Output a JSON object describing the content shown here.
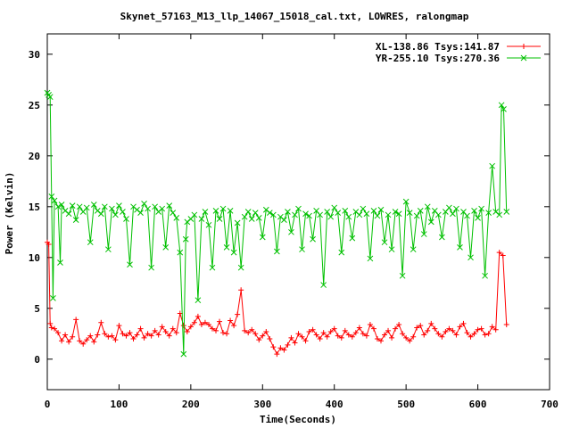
{
  "chart_data": {
    "type": "line",
    "title": "Skynet_57163_M13_llp_14067_15018_cal.txt, LOWRES, ralongmap",
    "xlabel": "Time(Seconds)",
    "ylabel": "Power (Kelvin)",
    "xlim": [
      0,
      700
    ],
    "ylim": [
      -3,
      32
    ],
    "xticks": [
      0,
      100,
      200,
      300,
      400,
      500,
      600,
      700
    ],
    "yticks": [
      0,
      5,
      10,
      15,
      20,
      25,
      30
    ],
    "grid": false,
    "legend_position": "top-right",
    "series": [
      {
        "name": "XL-138.86 Tsys:141.87",
        "color": "#ff0000",
        "marker": "plus",
        "points": [
          [
            0,
            11.5
          ],
          [
            2,
            11.3
          ],
          [
            4,
            3.5
          ],
          [
            6,
            3.1
          ],
          [
            10,
            3.0
          ],
          [
            15,
            2.6
          ],
          [
            20,
            1.8
          ],
          [
            25,
            2.4
          ],
          [
            30,
            1.7
          ],
          [
            35,
            2.2
          ],
          [
            40,
            3.9
          ],
          [
            45,
            1.8
          ],
          [
            50,
            1.5
          ],
          [
            55,
            1.9
          ],
          [
            60,
            2.3
          ],
          [
            65,
            1.7
          ],
          [
            70,
            2.4
          ],
          [
            75,
            3.6
          ],
          [
            80,
            2.5
          ],
          [
            85,
            2.2
          ],
          [
            90,
            2.3
          ],
          [
            95,
            1.9
          ],
          [
            100,
            3.3
          ],
          [
            105,
            2.5
          ],
          [
            110,
            2.3
          ],
          [
            115,
            2.6
          ],
          [
            120,
            2.0
          ],
          [
            125,
            2.4
          ],
          [
            130,
            3.0
          ],
          [
            135,
            2.1
          ],
          [
            140,
            2.5
          ],
          [
            145,
            2.3
          ],
          [
            150,
            2.8
          ],
          [
            155,
            2.4
          ],
          [
            160,
            3.2
          ],
          [
            165,
            2.7
          ],
          [
            170,
            2.3
          ],
          [
            175,
            3.0
          ],
          [
            180,
            2.6
          ],
          [
            185,
            4.5
          ],
          [
            190,
            3.3
          ],
          [
            195,
            2.7
          ],
          [
            200,
            3.2
          ],
          [
            205,
            3.6
          ],
          [
            210,
            4.2
          ],
          [
            215,
            3.4
          ],
          [
            220,
            3.6
          ],
          [
            225,
            3.4
          ],
          [
            230,
            3.0
          ],
          [
            235,
            2.8
          ],
          [
            240,
            3.7
          ],
          [
            245,
            2.6
          ],
          [
            250,
            2.5
          ],
          [
            255,
            3.8
          ],
          [
            260,
            3.3
          ],
          [
            265,
            4.4
          ],
          [
            270,
            6.8
          ],
          [
            275,
            2.8
          ],
          [
            280,
            2.6
          ],
          [
            285,
            2.9
          ],
          [
            290,
            2.5
          ],
          [
            295,
            1.9
          ],
          [
            300,
            2.3
          ],
          [
            305,
            2.7
          ],
          [
            310,
            2.0
          ],
          [
            315,
            1.2
          ],
          [
            320,
            0.5
          ],
          [
            325,
            1.1
          ],
          [
            330,
            0.9
          ],
          [
            335,
            1.4
          ],
          [
            340,
            2.1
          ],
          [
            345,
            1.6
          ],
          [
            350,
            2.5
          ],
          [
            355,
            2.2
          ],
          [
            360,
            1.8
          ],
          [
            365,
            2.7
          ],
          [
            370,
            2.9
          ],
          [
            375,
            2.4
          ],
          [
            380,
            2.0
          ],
          [
            385,
            2.6
          ],
          [
            390,
            2.2
          ],
          [
            395,
            2.7
          ],
          [
            400,
            3.0
          ],
          [
            405,
            2.3
          ],
          [
            410,
            2.1
          ],
          [
            415,
            2.8
          ],
          [
            420,
            2.4
          ],
          [
            425,
            2.2
          ],
          [
            430,
            2.6
          ],
          [
            435,
            3.1
          ],
          [
            440,
            2.5
          ],
          [
            445,
            2.3
          ],
          [
            450,
            3.4
          ],
          [
            455,
            3.0
          ],
          [
            460,
            2.0
          ],
          [
            465,
            1.8
          ],
          [
            470,
            2.4
          ],
          [
            475,
            2.8
          ],
          [
            480,
            2.1
          ],
          [
            485,
            3.0
          ],
          [
            490,
            3.4
          ],
          [
            495,
            2.5
          ],
          [
            500,
            2.1
          ],
          [
            505,
            1.8
          ],
          [
            510,
            2.2
          ],
          [
            515,
            3.1
          ],
          [
            520,
            3.3
          ],
          [
            525,
            2.4
          ],
          [
            530,
            2.8
          ],
          [
            535,
            3.5
          ],
          [
            540,
            3.0
          ],
          [
            545,
            2.5
          ],
          [
            550,
            2.2
          ],
          [
            555,
            2.7
          ],
          [
            560,
            3.0
          ],
          [
            565,
            2.8
          ],
          [
            570,
            2.4
          ],
          [
            575,
            3.2
          ],
          [
            580,
            3.5
          ],
          [
            585,
            2.6
          ],
          [
            590,
            2.2
          ],
          [
            595,
            2.5
          ],
          [
            600,
            2.9
          ],
          [
            605,
            3.0
          ],
          [
            610,
            2.4
          ],
          [
            615,
            2.5
          ],
          [
            620,
            3.2
          ],
          [
            625,
            2.9
          ],
          [
            630,
            10.5
          ],
          [
            635,
            10.2
          ],
          [
            640,
            3.4
          ]
        ]
      },
      {
        "name": "YR-255.10 Tsys:270.36",
        "color": "#00c000",
        "marker": "cross",
        "points": [
          [
            0,
            26.2
          ],
          [
            2,
            26.0
          ],
          [
            4,
            25.8
          ],
          [
            6,
            16.0
          ],
          [
            8,
            6.0
          ],
          [
            10,
            15.6
          ],
          [
            15,
            15.0
          ],
          [
            18,
            9.5
          ],
          [
            20,
            15.2
          ],
          [
            25,
            14.6
          ],
          [
            30,
            14.3
          ],
          [
            35,
            15.1
          ],
          [
            40,
            13.7
          ],
          [
            45,
            15.0
          ],
          [
            50,
            14.5
          ],
          [
            55,
            14.9
          ],
          [
            60,
            11.5
          ],
          [
            65,
            15.2
          ],
          [
            70,
            14.6
          ],
          [
            75,
            14.3
          ],
          [
            80,
            15.0
          ],
          [
            85,
            10.8
          ],
          [
            90,
            14.8
          ],
          [
            95,
            14.2
          ],
          [
            100,
            15.1
          ],
          [
            105,
            14.5
          ],
          [
            110,
            13.8
          ],
          [
            115,
            9.3
          ],
          [
            120,
            15.0
          ],
          [
            125,
            14.7
          ],
          [
            130,
            14.4
          ],
          [
            135,
            15.3
          ],
          [
            140,
            14.8
          ],
          [
            145,
            9.0
          ],
          [
            150,
            15.0
          ],
          [
            155,
            14.5
          ],
          [
            160,
            14.8
          ],
          [
            165,
            11.0
          ],
          [
            170,
            15.1
          ],
          [
            175,
            14.4
          ],
          [
            180,
            13.9
          ],
          [
            185,
            10.5
          ],
          [
            190,
            0.5
          ],
          [
            193,
            11.8
          ],
          [
            195,
            13.5
          ],
          [
            200,
            13.8
          ],
          [
            205,
            14.2
          ],
          [
            210,
            5.8
          ],
          [
            215,
            13.8
          ],
          [
            220,
            14.5
          ],
          [
            225,
            13.2
          ],
          [
            230,
            9.0
          ],
          [
            235,
            14.6
          ],
          [
            240,
            13.8
          ],
          [
            245,
            14.8
          ],
          [
            250,
            11.0
          ],
          [
            255,
            14.6
          ],
          [
            260,
            10.5
          ],
          [
            265,
            13.4
          ],
          [
            270,
            9.0
          ],
          [
            275,
            14.0
          ],
          [
            280,
            14.5
          ],
          [
            285,
            13.8
          ],
          [
            290,
            14.4
          ],
          [
            295,
            13.9
          ],
          [
            300,
            12.0
          ],
          [
            305,
            14.7
          ],
          [
            310,
            14.4
          ],
          [
            315,
            14.2
          ],
          [
            320,
            10.6
          ],
          [
            325,
            14.0
          ],
          [
            330,
            13.7
          ],
          [
            335,
            14.5
          ],
          [
            340,
            12.5
          ],
          [
            345,
            14.2
          ],
          [
            350,
            14.8
          ],
          [
            355,
            10.8
          ],
          [
            360,
            14.3
          ],
          [
            365,
            14.1
          ],
          [
            370,
            11.8
          ],
          [
            375,
            14.6
          ],
          [
            380,
            14.2
          ],
          [
            385,
            7.3
          ],
          [
            390,
            14.5
          ],
          [
            395,
            14.0
          ],
          [
            400,
            14.9
          ],
          [
            405,
            14.4
          ],
          [
            410,
            10.5
          ],
          [
            415,
            14.6
          ],
          [
            420,
            14.0
          ],
          [
            425,
            11.9
          ],
          [
            430,
            14.5
          ],
          [
            435,
            14.2
          ],
          [
            440,
            14.8
          ],
          [
            445,
            14.3
          ],
          [
            450,
            9.9
          ],
          [
            455,
            14.6
          ],
          [
            460,
            14.1
          ],
          [
            465,
            14.7
          ],
          [
            470,
            11.5
          ],
          [
            475,
            14.2
          ],
          [
            480,
            10.8
          ],
          [
            485,
            14.5
          ],
          [
            490,
            14.3
          ],
          [
            495,
            8.2
          ],
          [
            500,
            15.5
          ],
          [
            505,
            14.4
          ],
          [
            510,
            10.8
          ],
          [
            515,
            14.1
          ],
          [
            520,
            14.6
          ],
          [
            525,
            12.3
          ],
          [
            530,
            15.0
          ],
          [
            535,
            13.5
          ],
          [
            540,
            14.6
          ],
          [
            545,
            14.2
          ],
          [
            550,
            12.0
          ],
          [
            555,
            14.5
          ],
          [
            560,
            14.9
          ],
          [
            565,
            14.3
          ],
          [
            570,
            14.8
          ],
          [
            575,
            11.0
          ],
          [
            580,
            14.5
          ],
          [
            585,
            14.1
          ],
          [
            590,
            10.0
          ],
          [
            595,
            14.6
          ],
          [
            600,
            13.9
          ],
          [
            605,
            14.8
          ],
          [
            610,
            8.2
          ],
          [
            615,
            14.4
          ],
          [
            620,
            19.0
          ],
          [
            625,
            14.5
          ],
          [
            630,
            14.2
          ],
          [
            633,
            25.0
          ],
          [
            636,
            24.6
          ],
          [
            640,
            14.5
          ]
        ]
      }
    ]
  }
}
